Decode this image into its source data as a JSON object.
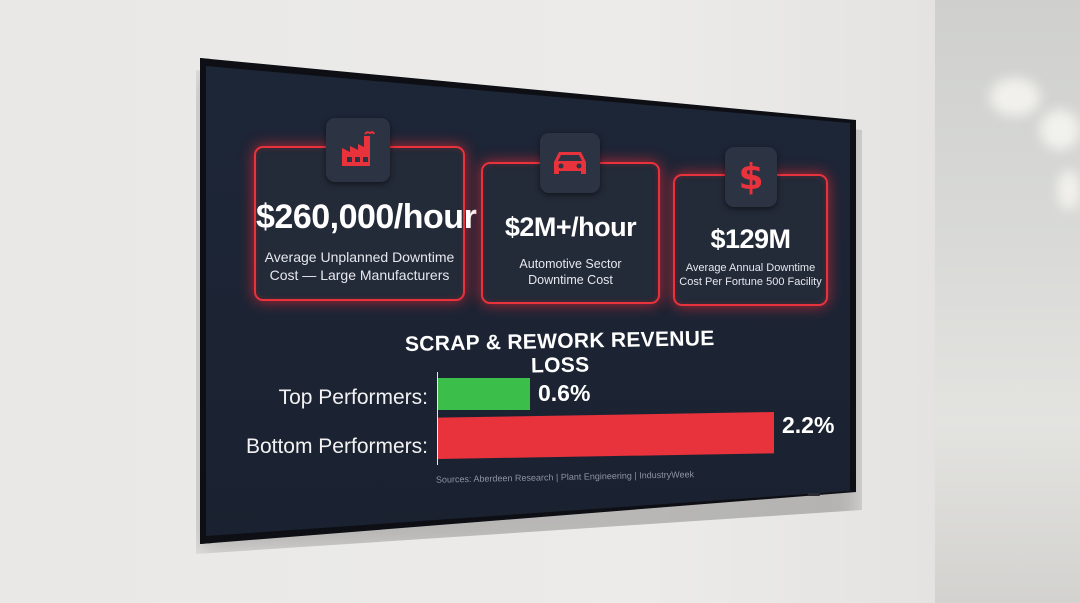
{
  "cards": [
    {
      "icon": "factory-icon",
      "metric": "$260,000/hour",
      "description_line1": "Average Unplanned Downtime",
      "description_line2": "Cost — Large Manufacturers"
    },
    {
      "icon": "car-icon",
      "metric": "$2M+/hour",
      "description_line1": "Automotive Sector",
      "description_line2": "Downtime Cost"
    },
    {
      "icon": "dollar-icon",
      "metric": "$129M",
      "description_line1": "Average Annual Downtime",
      "description_line2": "Cost Per Fortune 500 Facility"
    }
  ],
  "chart_data": {
    "type": "bar",
    "orientation": "horizontal",
    "title": "SCRAP & REWORK REVENUE LOSS",
    "categories": [
      "Top Performers:",
      "Bottom Performers:"
    ],
    "values": [
      0.6,
      2.2
    ],
    "value_labels": [
      "0.6%",
      "2.2%"
    ],
    "colors": [
      "#3cbf4a",
      "#e8323c"
    ],
    "unit": "%"
  },
  "sources": "Sources: Aberdeen Research | Plant Engineering | IndustryWeek",
  "colors": {
    "accent": "#e8323c",
    "positive": "#3cbf4a",
    "screen_bg": "#1d2637"
  }
}
